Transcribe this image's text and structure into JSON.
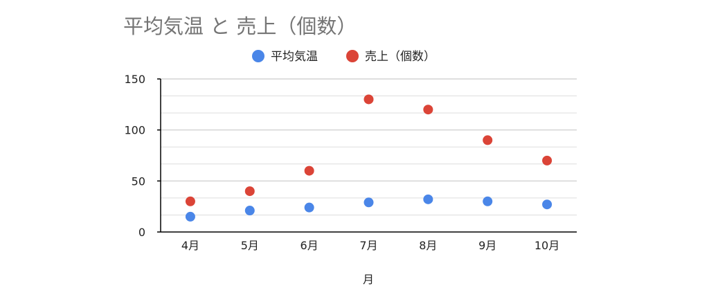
{
  "chart_data": {
    "type": "scatter",
    "title": "平均気温 と 売上（個数）",
    "xlabel": "月",
    "ylabel": "",
    "categories": [
      "4月",
      "5月",
      "6月",
      "7月",
      "8月",
      "9月",
      "10月"
    ],
    "ylim": [
      0,
      150
    ],
    "yticks": [
      0,
      50,
      100,
      150
    ],
    "ytick_labels": [
      "0",
      "50",
      "100",
      "150"
    ],
    "minor_grid_step": 16.67,
    "grid": true,
    "legend_position": "top",
    "series": [
      {
        "name": "平均気温",
        "color": "#4a86e8",
        "values": [
          15,
          21,
          24,
          29,
          32,
          30,
          27
        ]
      },
      {
        "name": "売上（個数）",
        "color": "#db4437",
        "values": [
          30,
          40,
          60,
          130,
          120,
          90,
          70
        ]
      }
    ],
    "colors": {
      "title": "#757575",
      "axis": "#000000",
      "grid": "#dddddd",
      "text": "#222222"
    }
  }
}
